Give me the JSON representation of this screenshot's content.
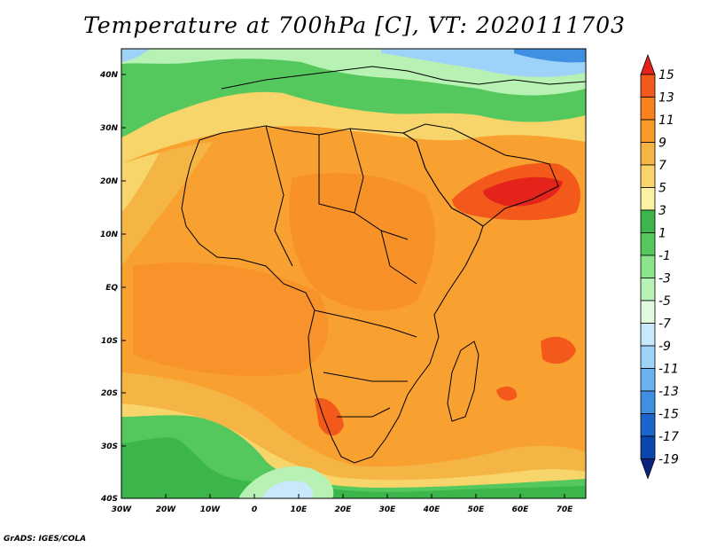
{
  "title": "Temperature at 700hPa [C], VT: 2020111703",
  "credit": "GrADS: IGES/COLA",
  "map": {
    "type": "filled-contour-map",
    "region": "Africa",
    "lat_ticks": [
      "40N",
      "30N",
      "20N",
      "10N",
      "EQ",
      "10S",
      "20S",
      "30S",
      "40S"
    ],
    "lon_ticks": [
      "30W",
      "20W",
      "10W",
      "0",
      "10E",
      "20E",
      "30E",
      "40E",
      "50E",
      "60E",
      "70E"
    ],
    "lat_range": [
      -40,
      45
    ],
    "lon_range": [
      -30,
      75
    ]
  },
  "colorbar": {
    "labels": [
      "15",
      "13",
      "11",
      "9",
      "7",
      "5",
      "3",
      "1",
      "-1",
      "-3",
      "-5",
      "-7",
      "-9",
      "-11",
      "-13",
      "-15",
      "-17",
      "-19"
    ],
    "colors": [
      "#e4231a",
      "#f2591a",
      "#f8821c",
      "#f89a28",
      "#f5b544",
      "#f7d56a",
      "#fbf1a2",
      "#3cb54a",
      "#55c85d",
      "#8be38b",
      "#b7f2b4",
      "#e2fae0",
      "#c8e8fb",
      "#9fd2f8",
      "#6bb3f0",
      "#3f90e2",
      "#1a66cc",
      "#0c45ad",
      "#0a2480"
    ]
  }
}
